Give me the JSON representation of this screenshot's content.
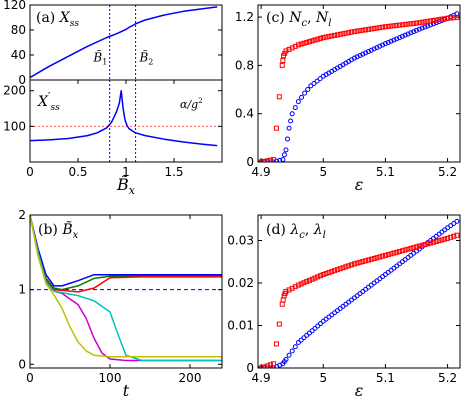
{
  "chart_data": [
    {
      "panel": "a-top",
      "type": "line",
      "label": "(a)",
      "ylabel": "X_ss",
      "xlim": [
        0,
        2
      ],
      "ylim": [
        0,
        120
      ],
      "yticks": [
        0,
        40,
        80,
        120
      ],
      "series": [
        {
          "name": "",
          "color": "#0000ff",
          "x": [
            0.0,
            0.2,
            0.4,
            0.6,
            0.8,
            0.9,
            1.0,
            1.04,
            1.08,
            1.1,
            1.2,
            1.4,
            1.6,
            1.8,
            1.95
          ],
          "y": [
            4,
            22,
            38,
            54,
            68,
            74,
            81,
            85,
            88,
            90,
            96,
            104,
            110,
            114,
            117
          ]
        }
      ],
      "vlines": [
        {
          "x": 0.83,
          "color": "#0000ff"
        },
        {
          "x": 1.1,
          "color": "#0000ff"
        }
      ],
      "annotations": [
        {
          "text": "B̃1",
          "x": 0.66,
          "y": 30
        },
        {
          "text": "B̃2",
          "x": 1.14,
          "y": 30
        }
      ]
    },
    {
      "panel": "a-bottom",
      "type": "line",
      "ylabel": "X'_ss",
      "xlabel": "B̃x",
      "xlim": [
        0,
        2
      ],
      "ylim": [
        0,
        230
      ],
      "xticks": [
        0,
        0.5,
        1,
        1.5
      ],
      "xticklabels": [
        "0",
        "0.5",
        "1",
        "1.5"
      ],
      "yticks": [
        100,
        200
      ],
      "series": [
        {
          "name": "",
          "color": "#0000ff",
          "x": [
            0.0,
            0.2,
            0.4,
            0.6,
            0.7,
            0.8,
            0.85,
            0.9,
            0.93,
            0.95,
            0.97,
            0.99,
            1.01,
            1.03,
            1.06,
            1.1,
            1.2,
            1.4,
            1.6,
            1.8,
            1.95
          ],
          "y": [
            60,
            62,
            66,
            74,
            82,
            96,
            112,
            140,
            165,
            200,
            150,
            118,
            102,
            94,
            88,
            82,
            74,
            64,
            56,
            50,
            46
          ]
        }
      ],
      "hline": {
        "y": 100,
        "color": "#ff6060",
        "label": "α/g²"
      },
      "vlines": [
        {
          "x": 0.83,
          "color": "#0000ff"
        },
        {
          "x": 1.1,
          "color": "#0000ff"
        }
      ]
    },
    {
      "panel": "b",
      "type": "line",
      "label": "(b)",
      "ylabel": "B̃x",
      "xlabel": "t",
      "xlim": [
        0,
        240
      ],
      "ylim": [
        -0.05,
        2.0
      ],
      "xticks": [
        0,
        100,
        200
      ],
      "yticks": [
        0,
        1,
        2
      ],
      "hline": {
        "y": 1,
        "color": "#0000ff",
        "dashed": true
      },
      "series": [
        {
          "name": "",
          "color": "#0000ff",
          "x": [
            0,
            10,
            20,
            30,
            40,
            60,
            80,
            100,
            140,
            240
          ],
          "y": [
            2.0,
            1.55,
            1.2,
            1.05,
            1.05,
            1.12,
            1.2,
            1.2,
            1.2,
            1.2
          ]
        },
        {
          "name": "",
          "color": "#008000",
          "x": [
            0,
            10,
            20,
            30,
            40,
            60,
            80,
            100,
            140,
            240
          ],
          "y": [
            2.0,
            1.5,
            1.15,
            1.02,
            1.0,
            1.05,
            1.15,
            1.18,
            1.18,
            1.18
          ]
        },
        {
          "name": "",
          "color": "#ff0000",
          "x": [
            0,
            10,
            20,
            30,
            40,
            60,
            80,
            100,
            140,
            240
          ],
          "y": [
            2.0,
            1.5,
            1.12,
            1.0,
            0.99,
            0.97,
            1.02,
            1.16,
            1.17,
            1.17
          ]
        },
        {
          "name": "",
          "color": "#cc00cc",
          "x": [
            0,
            10,
            20,
            30,
            40,
            60,
            70,
            80,
            90,
            100,
            120,
            240
          ],
          "y": [
            2.0,
            1.5,
            1.1,
            0.98,
            0.95,
            0.8,
            0.62,
            0.35,
            0.15,
            0.07,
            0.05,
            0.05
          ]
        },
        {
          "name": "",
          "color": "#00c0c0",
          "x": [
            0,
            10,
            20,
            30,
            40,
            60,
            80,
            100,
            110,
            120,
            140,
            240
          ],
          "y": [
            2.0,
            1.5,
            1.1,
            0.98,
            0.96,
            0.92,
            0.85,
            0.7,
            0.4,
            0.12,
            0.05,
            0.05
          ]
        },
        {
          "name": "",
          "color": "#c0c000",
          "x": [
            0,
            10,
            20,
            30,
            40,
            50,
            60,
            70,
            80,
            100,
            240
          ],
          "y": [
            2.0,
            1.45,
            1.08,
            0.93,
            0.75,
            0.5,
            0.3,
            0.18,
            0.12,
            0.1,
            0.1
          ]
        }
      ]
    },
    {
      "panel": "c",
      "type": "scatter",
      "label": "(c)",
      "ylabel": "Nc, Nl",
      "xlabel": "ε",
      "xlim": [
        4.895,
        5.22
      ],
      "ylim": [
        0,
        1.3
      ],
      "xticks": [
        4.9,
        5,
        5.1,
        5.2
      ],
      "xticklabels": [
        "4.9",
        "5",
        "5.1",
        "5.2"
      ],
      "yticks": [
        0,
        0.4,
        0.8,
        1.2
      ],
      "series": [
        {
          "name": "Nc",
          "color": "#0000ff",
          "marker": "circle",
          "x": [
            4.9,
            4.92,
            4.935,
            4.94,
            4.945,
            4.95,
            4.96,
            4.97,
            4.98,
            5.0,
            5.05,
            5.1,
            5.15,
            5.2,
            5.22
          ],
          "y": [
            0,
            0,
            0.02,
            0.1,
            0.28,
            0.4,
            0.5,
            0.57,
            0.63,
            0.71,
            0.86,
            0.98,
            1.09,
            1.19,
            1.24
          ]
        },
        {
          "name": "Nl",
          "color": "#ff0000",
          "marker": "square",
          "x": [
            4.9,
            4.92,
            4.934,
            4.936,
            4.94,
            4.96,
            5.0,
            5.05,
            5.1,
            5.15,
            5.2,
            5.22
          ],
          "y": [
            0,
            0.02,
            0.8,
            0.88,
            0.92,
            0.97,
            1.03,
            1.08,
            1.12,
            1.15,
            1.19,
            1.2
          ]
        }
      ]
    },
    {
      "panel": "d",
      "type": "scatter",
      "label": "(d)",
      "ylabel": "λc, λl",
      "xlabel": "ε",
      "xlim": [
        4.895,
        5.22
      ],
      "ylim": [
        0,
        0.036
      ],
      "xticks": [
        4.9,
        5,
        5.1,
        5.2
      ],
      "xticklabels": [
        "4.9",
        "5",
        "5.1",
        "5.2"
      ],
      "yticks": [
        0,
        0.01,
        0.02,
        0.03
      ],
      "series": [
        {
          "name": "λc",
          "color": "#0000ff",
          "marker": "circle",
          "x": [
            4.9,
            4.92,
            4.935,
            4.94,
            4.96,
            5.0,
            5.05,
            5.1,
            5.15,
            5.2,
            5.22
          ],
          "y": [
            0,
            0,
            0.001,
            0.002,
            0.006,
            0.011,
            0.0165,
            0.022,
            0.0275,
            0.033,
            0.035
          ]
        },
        {
          "name": "λl",
          "color": "#ff0000",
          "marker": "square",
          "x": [
            4.9,
            4.92,
            4.934,
            4.937,
            4.94,
            4.96,
            5.0,
            5.05,
            5.1,
            5.15,
            5.2,
            5.22
          ],
          "y": [
            0,
            0.001,
            0.015,
            0.017,
            0.018,
            0.0195,
            0.022,
            0.0245,
            0.0265,
            0.0285,
            0.0305,
            0.0315
          ]
        }
      ]
    }
  ]
}
